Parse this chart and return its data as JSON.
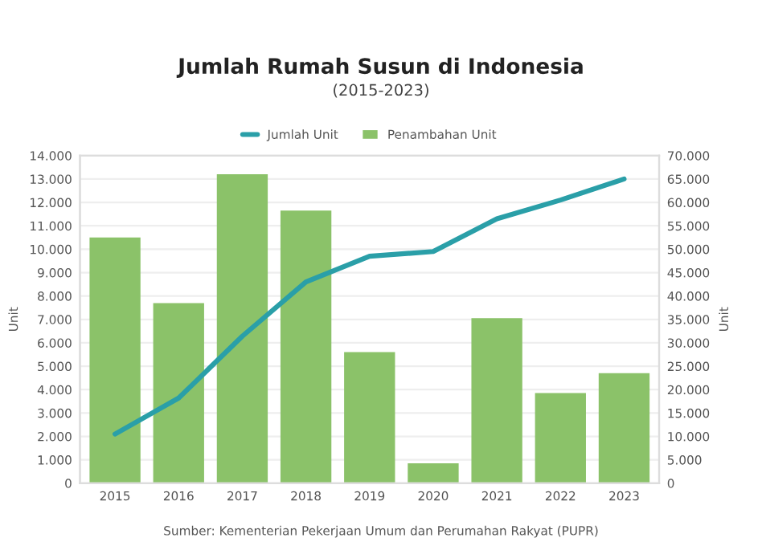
{
  "chart_data": {
    "type": "bar",
    "title": "Jumlah Rumah Susun di Indonesia",
    "subtitle": "(2015-2023)",
    "ylabel": "Unit",
    "y2label": "Unit",
    "categories": [
      "2015",
      "2016",
      "2017",
      "2018",
      "2019",
      "2020",
      "2021",
      "2022",
      "2023"
    ],
    "series": [
      {
        "name": "Jumlah Unit",
        "type": "line",
        "axis": "y2",
        "color": "#2a9fa8",
        "values": [
          10500,
          18200,
          31400,
          43000,
          48500,
          49500,
          56500,
          60500,
          65000
        ]
      },
      {
        "name": "Penambahan Unit",
        "color": "#8bc269",
        "values": [
          10500,
          7700,
          13200,
          11650,
          5600,
          850,
          7050,
          3850,
          4700
        ]
      }
    ],
    "ylim": [
      0,
      14000
    ],
    "yticks": [
      0,
      {
        "value": 1000,
        "label": "1.000"
      },
      {
        "value": 2000,
        "label": "2.000"
      },
      {
        "value": 3000,
        "label": "3.000"
      },
      {
        "value": 4000,
        "label": "4.000"
      },
      {
        "value": 5000,
        "label": "5.000"
      },
      {
        "value": 6000,
        "label": "6.000"
      },
      {
        "value": 7000,
        "label": "7.000"
      },
      {
        "value": 8000,
        "label": "8.000"
      },
      {
        "value": 9000,
        "label": "9.000"
      },
      {
        "value": 10000,
        "label": "10.000"
      },
      {
        "value": 11000,
        "label": "11.000"
      },
      {
        "value": 12000,
        "label": "12.000"
      },
      {
        "value": 13000,
        "label": "13.000"
      },
      {
        "value": 14000,
        "label": "14.000"
      }
    ],
    "y2lim": [
      0,
      70000
    ],
    "y2ticks": [
      0,
      {
        "value": 5000,
        "label": "5.000"
      },
      {
        "value": 10000,
        "label": "10.000"
      },
      {
        "value": 15000,
        "label": "15.000"
      },
      {
        "value": 20000,
        "label": "20.000"
      },
      {
        "value": 25000,
        "label": "25.000"
      },
      {
        "value": 30000,
        "label": "30.000"
      },
      {
        "value": 35000,
        "label": "35.000"
      },
      {
        "value": 40000,
        "label": "40.000"
      },
      {
        "value": 45000,
        "label": "45.000"
      },
      {
        "value": 50000,
        "label": "50.000"
      },
      {
        "value": 55000,
        "label": "55.000"
      },
      {
        "value": 60000,
        "label": "60.000"
      },
      {
        "value": 65000,
        "label": "65.000"
      },
      {
        "value": 70000,
        "label": "70.000"
      }
    ],
    "grid": "y",
    "legend": "top",
    "marker": "none",
    "line_style": "solid",
    "annotations": [
      "Sumber: Kementerian Pekerjaan Umum dan Perumahan Rakyat (PUPR)"
    ]
  }
}
